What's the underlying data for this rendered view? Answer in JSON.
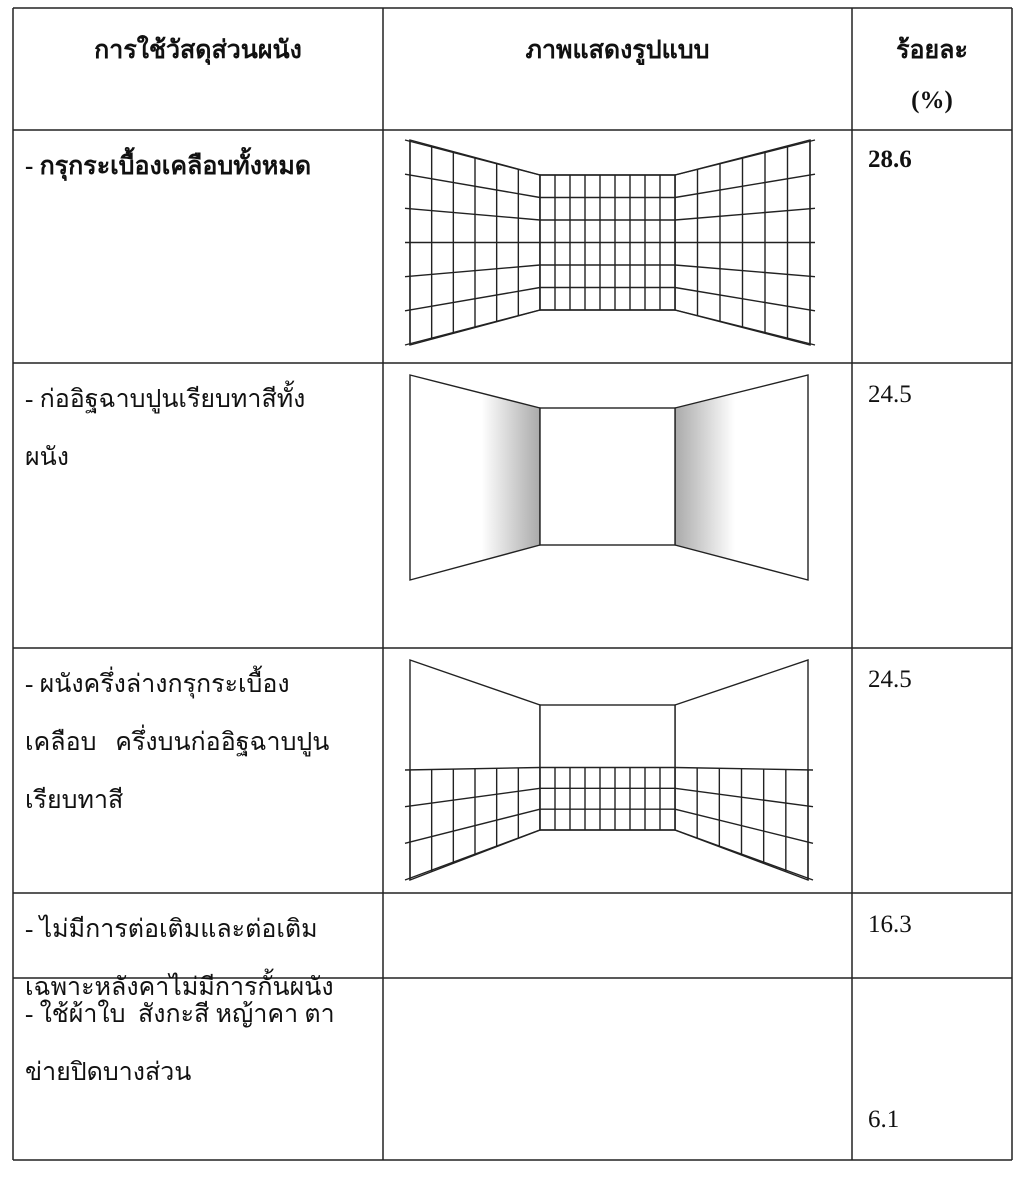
{
  "table": {
    "header": {
      "material": "การใช้วัสดุส่วนผนัง",
      "pattern": "ภาพแสดงรูปแบบ",
      "percent_lines": [
        "ร้อยละ",
        "(%)"
      ]
    },
    "rows": [
      {
        "material_lines": [
          "- กรุกระเบื้องเคลือบทั้งหมด"
        ],
        "percent": "28.6"
      },
      {
        "material_lines": [
          "- ก่ออิฐฉาบปูนเรียบทาสีทั้ง",
          "ผนัง"
        ],
        "percent": "24.5"
      },
      {
        "material_lines": [
          "- ผนังครึ่งล่างกรุกระเบื้อง",
          "เคลือบ   ครึ่งบนก่ออิฐฉาบปูน",
          "เรียบทาสี"
        ],
        "percent": "24.5"
      },
      {
        "material_lines": [
          "- ไม่มีการต่อเติมและต่อเติม",
          "เฉพาะหลังคาไม่มีการกั้นผนัง"
        ],
        "percent": "16.3"
      },
      {
        "material_lines": [
          "- ใช้ผ้าใบ  สังกะสี หญ้าคา ตา",
          "ข่ายปิดบางส่วน"
        ],
        "percent": "6.1"
      }
    ]
  }
}
